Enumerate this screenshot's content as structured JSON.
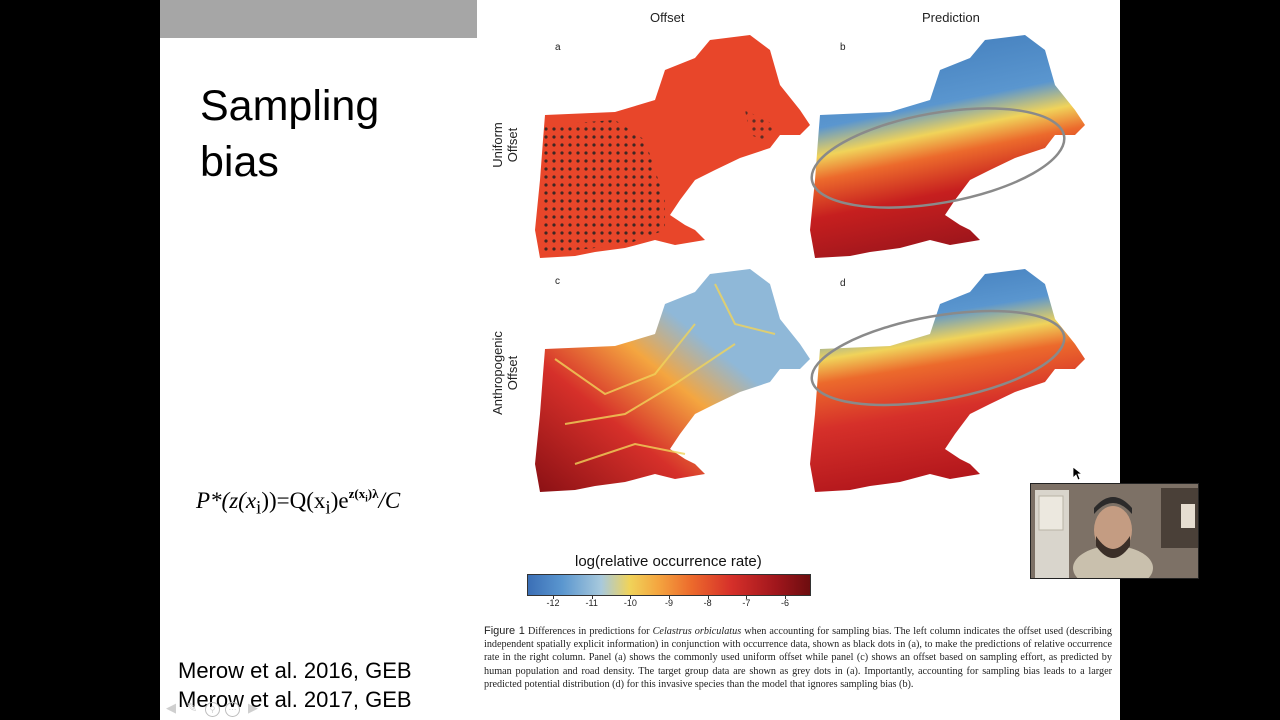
{
  "slide": {
    "title": "Sampling bias",
    "formula": {
      "lhs": "P*(z(x",
      "sub_i": "i",
      "mid": "))=Q(x",
      "mid2": ")e",
      "exp": "z(x",
      "exp_i": "i",
      "exp_end": ")λ",
      "rhs": "/C"
    },
    "references": [
      "Merow et al. 2016,  GEB",
      "Merow et al. 2017,  GEB"
    ]
  },
  "figure": {
    "columns": [
      "Offset",
      "Prediction"
    ],
    "rows": [
      "Uniform Offset",
      "Anthropogenic Offset"
    ],
    "row_lines": [
      [
        "Uniform",
        "Offset"
      ],
      [
        "Anthropogenic",
        "Offset"
      ]
    ],
    "panels": [
      "a",
      "b",
      "c",
      "d"
    ],
    "colorbar": {
      "title": "log(relative occurrence rate)",
      "ticks": [
        "-12",
        "-11",
        "-10",
        "-9",
        "-8",
        "-7",
        "-6"
      ]
    },
    "caption": {
      "label": "Figure 1",
      "text_before": " Differences in predictions for ",
      "species": "Celastrus orbiculatus",
      "text_after": " when accounting for sampling bias. The left column indicates the offset used (describing independent spatially explicit information) in conjunction with occurrence data, shown as black dots in (a), to make the predictions of relative occurrence rate in the right column. Panel (a) shows the commonly used uniform offset while panel (c) shows an offset based on sampling effort, as predicted by human population and road density. The target group data are shown as grey dots in (a). Importantly, accounting for sampling bias leads to a larger predicted potential distribution (d) for this invasive species than the model that ignores sampling bias (b)."
    }
  },
  "colors": {
    "map_orange": "#e8462a",
    "map_blue": "#3d78b8",
    "map_red": "#b3171c",
    "ellipse": "#8a8a8a"
  },
  "icons": [
    "back-arrow-icon",
    "pen-icon",
    "zoom-icon",
    "menu-icon",
    "forward-arrow-icon",
    "cursor-icon"
  ]
}
